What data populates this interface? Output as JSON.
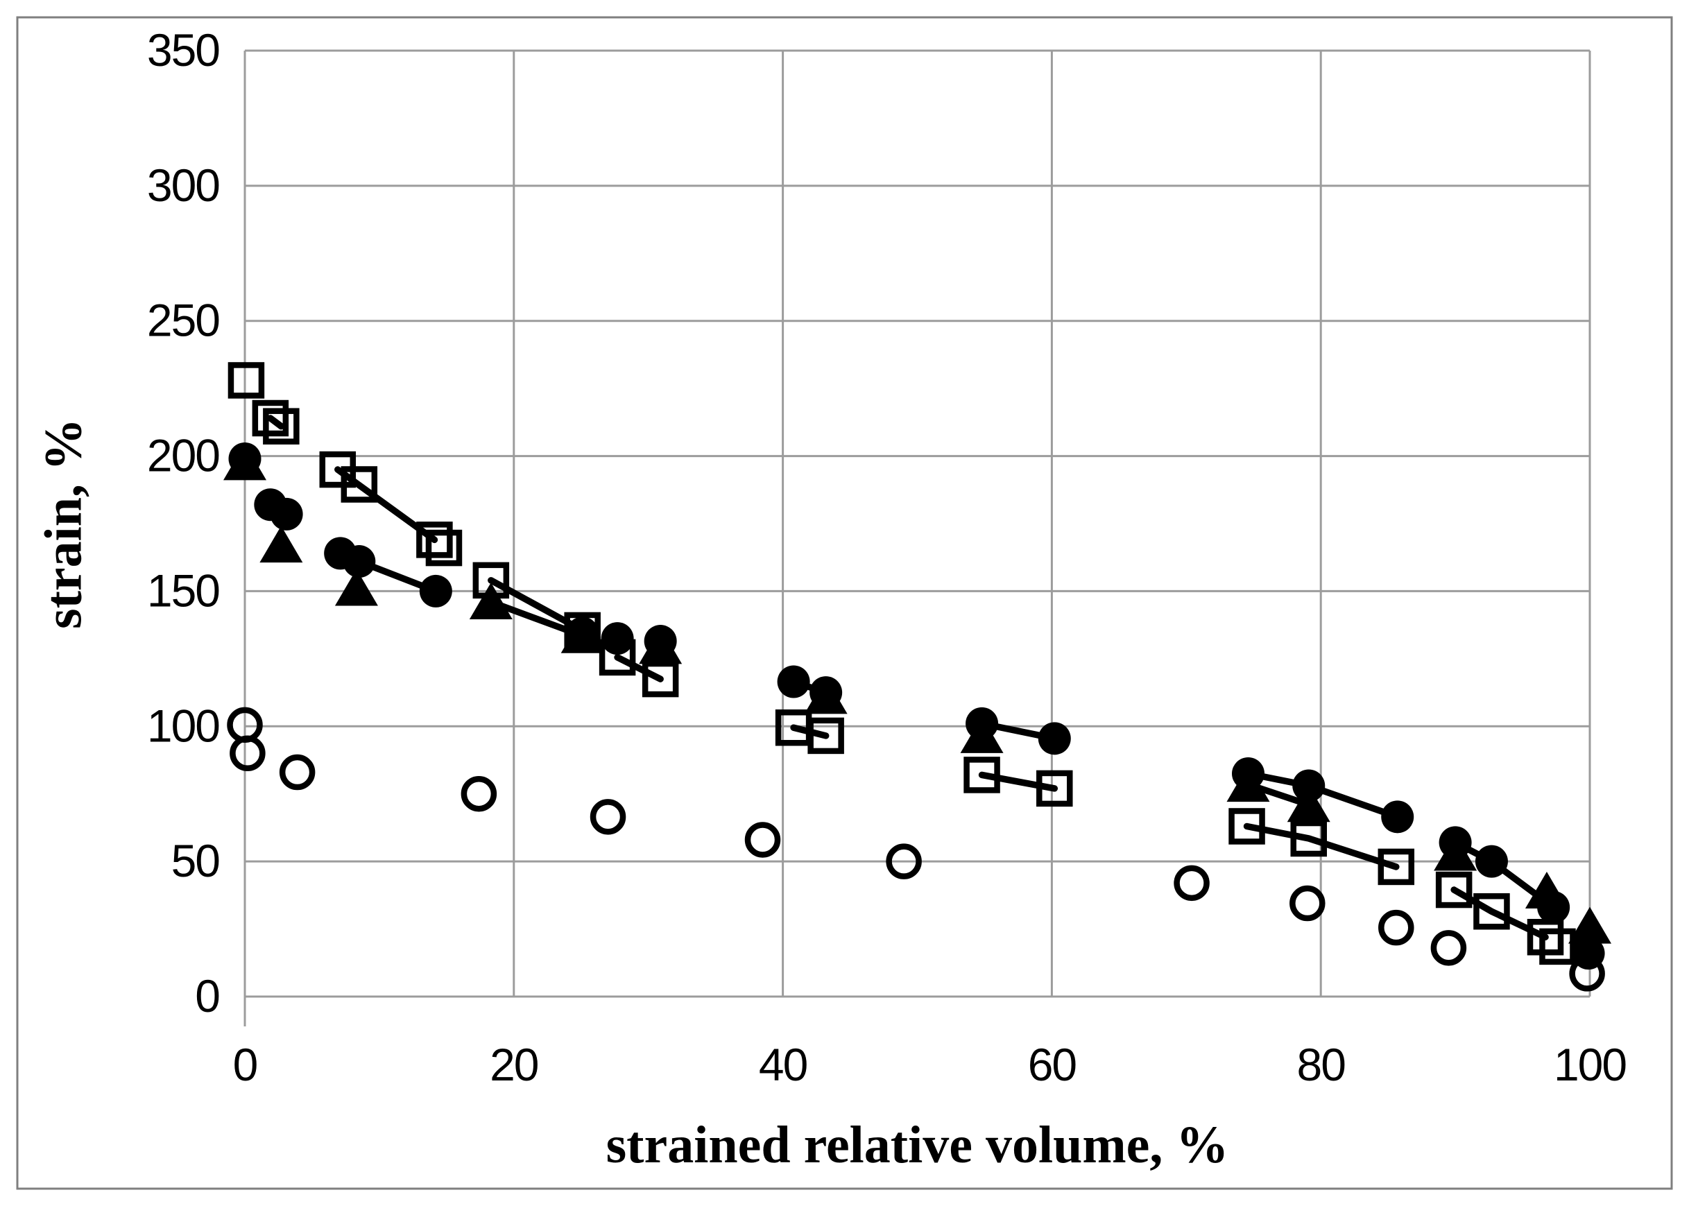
{
  "chart_data": {
    "type": "scatter",
    "title": "",
    "xlabel": "strained relative volume, %",
    "ylabel": "strain, %",
    "xlim": [
      0,
      100
    ],
    "ylim": [
      0,
      350
    ],
    "xticks": [
      0,
      20,
      40,
      60,
      80,
      100
    ],
    "yticks": [
      0,
      50,
      100,
      150,
      200,
      250,
      300,
      350
    ],
    "grid": true,
    "legend": "none",
    "colors": {
      "marker": "#000000",
      "grid": "#9c9c9c",
      "border": "#7f7f7f",
      "background": "#ffffff"
    },
    "series": [
      {
        "name": "open squares",
        "marker": "square-open",
        "points": [
          [
            0.1,
            228
          ],
          [
            1.9,
            214
          ],
          [
            2.7,
            211
          ],
          [
            6.9,
            195
          ],
          [
            8.5,
            189.5
          ],
          [
            14.1,
            169
          ],
          [
            14.8,
            166
          ],
          [
            18.3,
            154
          ],
          [
            25.1,
            135.5
          ],
          [
            27.7,
            125.5
          ],
          [
            30.9,
            117.5
          ],
          [
            40.8,
            99.5
          ],
          [
            43.2,
            96.5
          ],
          [
            54.8,
            82
          ],
          [
            60.2,
            77
          ],
          [
            74.5,
            63
          ],
          [
            79.1,
            58.5
          ],
          [
            85.6,
            48
          ],
          [
            89.9,
            39.5
          ],
          [
            92.7,
            31.5
          ],
          [
            96.7,
            22
          ],
          [
            97.6,
            18.5
          ]
        ],
        "segments": [
          [
            1,
            2
          ],
          [
            3,
            5
          ],
          [
            7,
            8
          ],
          [
            9,
            10
          ],
          [
            11,
            12
          ],
          [
            13,
            14
          ],
          [
            15,
            16,
            17
          ],
          [
            18,
            19,
            20
          ]
        ]
      },
      {
        "name": "filled triangles",
        "marker": "triangle-filled",
        "points": [
          [
            0,
            197.5
          ],
          [
            2.7,
            167
          ],
          [
            8.3,
            151
          ],
          [
            18.3,
            146
          ],
          [
            25.1,
            133.5
          ],
          [
            30.9,
            129.5
          ],
          [
            43.2,
            111
          ],
          [
            54.8,
            96.5
          ],
          [
            74.6,
            78.5
          ],
          [
            79.1,
            71
          ],
          [
            90,
            53
          ],
          [
            96.8,
            39
          ],
          [
            100,
            26
          ]
        ],
        "segments": [
          [
            3,
            4
          ],
          [
            8,
            9
          ]
        ]
      },
      {
        "name": "filled circles",
        "marker": "circle-filled",
        "points": [
          [
            0,
            199
          ],
          [
            1.9,
            182
          ],
          [
            3.1,
            178.5
          ],
          [
            7.1,
            164
          ],
          [
            8.5,
            161
          ],
          [
            14.2,
            150
          ],
          [
            25.1,
            134.5
          ],
          [
            27.7,
            132.5
          ],
          [
            30.9,
            131.5
          ],
          [
            40.8,
            116.5
          ],
          [
            43.2,
            112.5
          ],
          [
            54.8,
            101
          ],
          [
            60.2,
            95.5
          ],
          [
            74.6,
            82.5
          ],
          [
            79.1,
            78
          ],
          [
            85.7,
            66.5
          ],
          [
            90,
            57
          ],
          [
            92.7,
            50
          ],
          [
            97.3,
            33
          ],
          [
            99.9,
            16
          ]
        ],
        "segments": [
          [
            1,
            2
          ],
          [
            3,
            4,
            5
          ],
          [
            9,
            10
          ],
          [
            11,
            12
          ],
          [
            13,
            14,
            15
          ],
          [
            16,
            17,
            18
          ]
        ]
      },
      {
        "name": "open circles",
        "marker": "circle-open",
        "points": [
          [
            0,
            100.5
          ],
          [
            0.2,
            90
          ],
          [
            3.9,
            83
          ],
          [
            17.4,
            75
          ],
          [
            27,
            66.5
          ],
          [
            38.5,
            58
          ],
          [
            49,
            50
          ],
          [
            70.4,
            42
          ],
          [
            79,
            34.5
          ],
          [
            85.6,
            25.5
          ],
          [
            89.5,
            18
          ],
          [
            99.8,
            8.5
          ]
        ],
        "segments": []
      }
    ]
  }
}
